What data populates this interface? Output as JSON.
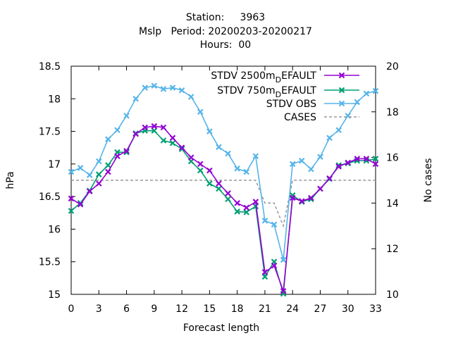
{
  "chart_data": {
    "type": "line",
    "title_lines": [
      "Station:     3963",
      "Mslp   Period: 20200203-20200217",
      "Hours:  00"
    ],
    "xlabel": "Forecast length",
    "ylabel": "hPa",
    "y2label": "No cases",
    "xlim": [
      0,
      33
    ],
    "ylim": [
      15,
      18.5
    ],
    "y2lim": [
      10,
      20
    ],
    "xticks": [
      "0",
      "3",
      "6",
      "9",
      "12",
      "15",
      "18",
      "21",
      "24",
      "27",
      "30",
      "33"
    ],
    "yticks": [
      "15",
      "15.5",
      "16",
      "16.5",
      "17",
      "17.5",
      "18",
      "18.5"
    ],
    "y2ticks": [
      "10",
      "12",
      "14",
      "16",
      "18",
      "20"
    ],
    "legend_position": "top-right",
    "series": [
      {
        "name": "STDV 2500m_DEFAULT",
        "legend_main": "STDV 2500m",
        "legend_sub": "D",
        "legend_tail": "EFAULT",
        "color": "#9400d3",
        "marker": "x",
        "axis": "y",
        "x": [
          0,
          1,
          2,
          3,
          4,
          5,
          6,
          7,
          8,
          9,
          10,
          11,
          12,
          13,
          14,
          15,
          16,
          17,
          18,
          19,
          20,
          21,
          22,
          23,
          24,
          25,
          26,
          27,
          28,
          29,
          30,
          31,
          32,
          33
        ],
        "values": [
          16.47,
          16.38,
          16.58,
          16.7,
          16.88,
          17.12,
          17.2,
          17.46,
          17.56,
          17.58,
          17.56,
          17.4,
          17.25,
          17.1,
          17.0,
          16.9,
          16.7,
          16.55,
          16.4,
          16.33,
          16.42,
          15.34,
          15.44,
          15.05,
          16.48,
          16.43,
          16.48,
          16.62,
          16.78,
          16.96,
          17.02,
          17.08,
          17.08,
          17.0
        ]
      },
      {
        "name": "STDV 750m_DEFAULT",
        "legend_main": "STDV 750m",
        "legend_sub": "D",
        "legend_tail": "EFAULT",
        "color": "#009e73",
        "marker": "x",
        "axis": "y",
        "x": [
          0,
          1,
          2,
          3,
          4,
          5,
          6,
          7,
          8,
          9,
          10,
          11,
          12,
          13,
          14,
          15,
          16,
          17,
          18,
          19,
          20,
          21,
          22,
          23,
          24,
          25,
          26,
          27,
          28,
          29,
          30,
          31,
          32,
          33
        ],
        "values": [
          16.28,
          16.4,
          16.59,
          16.84,
          16.98,
          17.18,
          17.18,
          17.47,
          17.51,
          17.51,
          17.36,
          17.32,
          17.23,
          17.04,
          16.9,
          16.7,
          16.62,
          16.46,
          16.27,
          16.26,
          16.35,
          15.27,
          15.5,
          15.01,
          16.52,
          16.42,
          16.46,
          16.62,
          16.77,
          16.98,
          17.01,
          17.05,
          17.05,
          17.08
        ]
      },
      {
        "name": "STDV OBS",
        "legend_main": "STDV OBS",
        "color": "#56b4e9",
        "marker": "x",
        "axis": "y",
        "x": [
          0,
          1,
          2,
          3,
          4,
          5,
          6,
          7,
          8,
          9,
          10,
          11,
          12,
          13,
          14,
          15,
          16,
          17,
          18,
          19,
          20,
          21,
          22,
          23,
          24,
          25,
          26,
          27,
          28,
          29,
          30,
          31,
          32,
          33
        ],
        "values": [
          16.88,
          16.94,
          16.83,
          17.04,
          17.38,
          17.52,
          17.74,
          18.0,
          18.17,
          18.2,
          18.15,
          18.17,
          18.13,
          18.03,
          17.8,
          17.5,
          17.26,
          17.16,
          16.93,
          16.88,
          17.12,
          16.13,
          16.07,
          15.53,
          17.0,
          17.05,
          16.92,
          17.11,
          17.4,
          17.52,
          17.74,
          17.95,
          18.08,
          18.12
        ]
      },
      {
        "name": "CASES",
        "legend_main": "CASES",
        "color": "#999999",
        "marker": "none",
        "dashed": true,
        "axis": "y2",
        "x": [
          0,
          1,
          2,
          3,
          4,
          5,
          6,
          7,
          8,
          9,
          10,
          11,
          12,
          13,
          14,
          15,
          16,
          17,
          18,
          19,
          20,
          21,
          22,
          23,
          24,
          25,
          26,
          27,
          28,
          29,
          30,
          31,
          32,
          33
        ],
        "values": [
          15,
          15,
          15,
          15,
          15,
          15,
          15,
          15,
          15,
          15,
          15,
          15,
          15,
          15,
          15,
          15,
          15,
          15,
          15,
          15,
          15,
          14,
          14,
          13,
          15,
          15,
          15,
          15,
          15,
          15,
          15,
          15,
          15,
          15
        ]
      }
    ]
  }
}
